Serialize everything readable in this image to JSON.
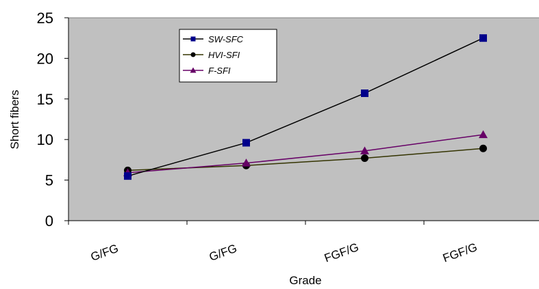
{
  "chart_data": {
    "type": "line",
    "categories": [
      "G/FG",
      "G/FG",
      "FGF/G",
      "FGF/G"
    ],
    "series": [
      {
        "name": "SW-SFC",
        "values": [
          5.5,
          9.6,
          15.7,
          22.5
        ],
        "color": "#000000",
        "marker_color": "#00008B",
        "marker": "square"
      },
      {
        "name": "HVI-SFI",
        "values": [
          6.2,
          6.8,
          7.7,
          8.9
        ],
        "color": "#333300",
        "marker_color": "#000000",
        "marker": "circle"
      },
      {
        "name": "F-SFI",
        "values": [
          5.9,
          7.1,
          8.6,
          10.6
        ],
        "color": "#660066",
        "marker_color": "#660066",
        "marker": "triangle"
      }
    ],
    "xlabel": "Grade",
    "ylabel": "Short fibers",
    "ylim": [
      0,
      25
    ],
    "yticks": [
      0,
      5,
      10,
      15,
      20,
      25
    ],
    "grid": false,
    "plot_background": "#C0C0C0",
    "legend_position": "top-left inside plot"
  }
}
